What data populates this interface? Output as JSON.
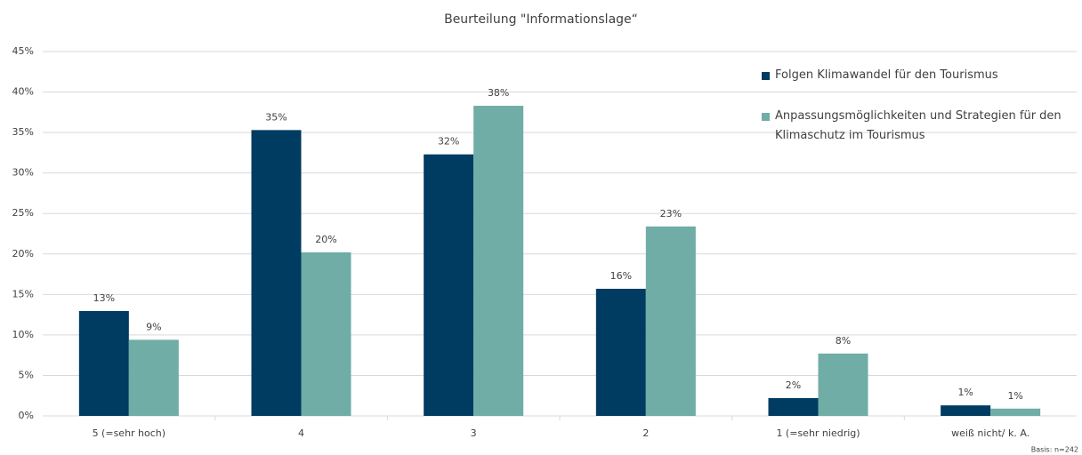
{
  "chart_data": {
    "type": "bar",
    "title": "Beurteilung \"Informationslage“",
    "categories": [
      "5 (=sehr hoch)",
      "4",
      "3",
      "2",
      "1 (=sehr niedrig)",
      "weiß nicht/ k. A."
    ],
    "series": [
      {
        "name": "Folgen Klimawandel für den Tourismus",
        "color": "#003b62",
        "values": [
          12.95,
          35.3,
          32.3,
          15.7,
          2.2,
          1.3
        ],
        "value_labels": [
          "13%",
          "35%",
          "32%",
          "16%",
          "2%",
          "1%"
        ]
      },
      {
        "name": "Anpassungsmöglichkeiten und Strategien für den Klimaschutz im Tourismus",
        "color": "#6fada6",
        "values": [
          9.4,
          20.2,
          38.3,
          23.4,
          7.7,
          0.9
        ],
        "value_labels": [
          "9%",
          "20%",
          "38%",
          "23%",
          "8%",
          "1%"
        ]
      }
    ],
    "ylim": [
      0,
      45
    ],
    "yticks": [
      {
        "value": 0,
        "label": "0%"
      },
      {
        "value": 5,
        "label": "5%"
      },
      {
        "value": 10,
        "label": "10%"
      },
      {
        "value": 15,
        "label": "15%"
      },
      {
        "value": 20,
        "label": "20%"
      },
      {
        "value": 25,
        "label": "25%"
      },
      {
        "value": 30,
        "label": "30%"
      },
      {
        "value": 35,
        "label": "35%"
      },
      {
        "value": 40,
        "label": "40%"
      },
      {
        "value": 45,
        "label": "45%"
      }
    ],
    "grid": true,
    "legend": "upper right",
    "annotation": "Basis: n=242"
  }
}
